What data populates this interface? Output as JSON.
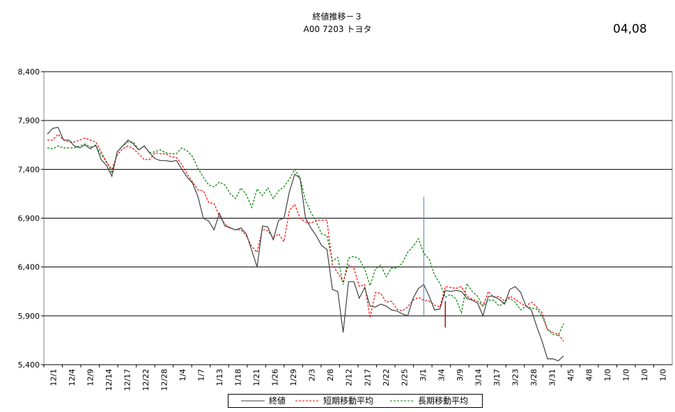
{
  "header": {
    "title_line1": "終値推移－３",
    "title_line2": "A00 7203 トヨタ",
    "code": "04,08"
  },
  "colors": {
    "close": "#404040",
    "short_ma": "#ff0000",
    "long_ma": "#008000",
    "vline_blue": "#4f81bd",
    "vline_red": "#c00000"
  },
  "chart_data": {
    "type": "line",
    "title": "終値推移－３",
    "ylim": [
      5400,
      8400
    ],
    "yticks": [
      "5,400",
      "5,900",
      "6,400",
      "6,900",
      "7,400",
      "7,900",
      "8,400"
    ],
    "xticklabels": [
      "12/1",
      "12/4",
      "12/9",
      "12/14",
      "12/17",
      "12/22",
      "12/28",
      "1/4",
      "1/7",
      "1/13",
      "1/18",
      "1/21",
      "1/26",
      "1/29",
      "2/3",
      "2/8",
      "2/12",
      "2/17",
      "2/22",
      "2/25",
      "3/1",
      "3/4",
      "3/9",
      "3/14",
      "3/17",
      "3/23",
      "3/28",
      "3/31",
      "4/5",
      "4/8",
      "1/0",
      "1/0",
      "1/0",
      "1/0"
    ],
    "grid": "horizontal",
    "legend_position": "bottom",
    "series": [
      {
        "name": "終値",
        "values": [
          7760,
          7820,
          7830,
          7700,
          7700,
          7640,
          7620,
          7650,
          7610,
          7650,
          7500,
          7440,
          7330,
          7580,
          7640,
          7700,
          7660,
          7600,
          7640,
          7570,
          7510,
          7490,
          7490,
          7480,
          7490,
          7400,
          7320,
          7260,
          7120,
          6900,
          6870,
          6780,
          6950,
          6820,
          6800,
          6780,
          6800,
          6740,
          6570,
          6400,
          6820,
          6810,
          6680,
          6880,
          6900,
          7170,
          7350,
          7310,
          6900,
          6800,
          6720,
          6620,
          6580,
          6170,
          6150,
          5730,
          6250,
          6250,
          6080,
          6190,
          6000,
          5990,
          6020,
          6000,
          5960,
          5950,
          5920,
          5900,
          6080,
          6180,
          6220,
          6100,
          5960,
          5970,
          6160,
          6150,
          6160,
          6150,
          6080,
          6060,
          6030,
          5900,
          6100,
          6100,
          6070,
          6020,
          6170,
          6200,
          6140,
          6000,
          5960,
          5790,
          5640,
          5460,
          5460,
          5440,
          5490
        ]
      },
      {
        "name": "短期移動平均",
        "values": [
          7700,
          7700,
          7760,
          7700,
          7680,
          7680,
          7700,
          7720,
          7700,
          7680,
          7580,
          7470,
          7400,
          7550,
          7610,
          7640,
          7610,
          7560,
          7500,
          7500,
          7570,
          7560,
          7560,
          7530,
          7520,
          7450,
          7350,
          7270,
          7190,
          7180,
          7060,
          7050,
          6920,
          6840,
          6800,
          6780,
          6780,
          6720,
          6610,
          6550,
          6790,
          6770,
          6700,
          6740,
          6660,
          6980,
          7040,
          6900,
          6860,
          6850,
          6880,
          6880,
          6880,
          6420,
          6340,
          6250,
          6420,
          6390,
          6200,
          6220,
          5880,
          6140,
          6130,
          6040,
          6050,
          5970,
          5950,
          5990,
          6060,
          6090,
          6060,
          6050,
          6010,
          5990,
          6200,
          6190,
          6180,
          6200,
          6100,
          6070,
          6050,
          6000,
          6150,
          6090,
          6100,
          6050,
          6100,
          6070,
          6030,
          6000,
          6040,
          5990,
          5930,
          5760,
          5730,
          5710,
          5640
        ]
      },
      {
        "name": "長期移動平均",
        "values": [
          7620,
          7610,
          7640,
          7620,
          7620,
          7620,
          7640,
          7660,
          7630,
          7640,
          7550,
          7480,
          7360,
          7580,
          7640,
          7680,
          7680,
          7600,
          7640,
          7570,
          7580,
          7600,
          7570,
          7560,
          7560,
          7620,
          7590,
          7530,
          7410,
          7320,
          7240,
          7220,
          7270,
          7240,
          7150,
          7100,
          7210,
          7140,
          7010,
          7200,
          7130,
          7210,
          7100,
          7180,
          7220,
          7300,
          7400,
          7310,
          7080,
          6960,
          6860,
          6740,
          6720,
          6460,
          6500,
          6220,
          6490,
          6510,
          6480,
          6380,
          6210,
          6380,
          6420,
          6300,
          6390,
          6390,
          6440,
          6550,
          6610,
          6690,
          6540,
          6480,
          6320,
          6230,
          6090,
          6120,
          6070,
          5930,
          6230,
          6150,
          6100,
          6000,
          6060,
          6060,
          6000,
          6040,
          6080,
          6040,
          5960,
          6000,
          5980,
          5970,
          5900,
          5760,
          5710,
          5700,
          5820
        ]
      }
    ]
  },
  "legend": {
    "close": "終値",
    "short_ma": "短期移動平均",
    "long_ma": "長期移動平均"
  }
}
